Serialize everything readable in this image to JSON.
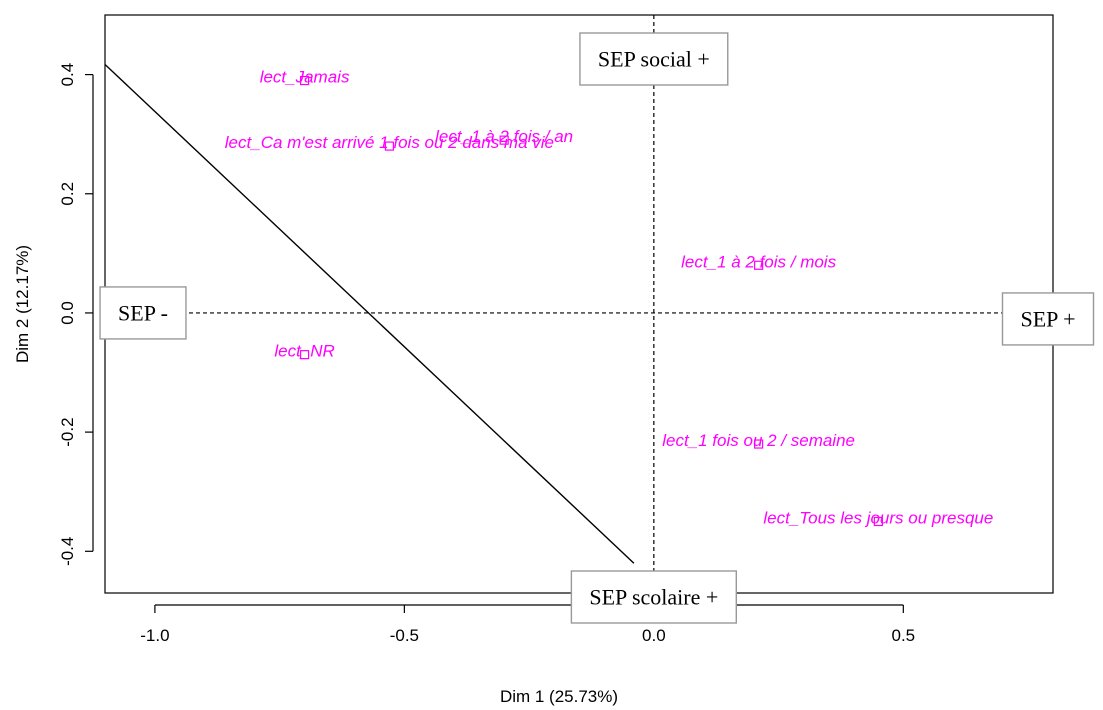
{
  "chart_data": {
    "type": "scatter",
    "xlabel": "Dim 1 (25.73%)",
    "ylabel": "Dim 2 (12.17%)",
    "xlim": [
      -1.1,
      0.8
    ],
    "ylim": [
      -0.47,
      0.5
    ],
    "x_ticks": [
      -1.0,
      -0.5,
      0.0,
      0.5
    ],
    "x_tick_labels": [
      "-1.0",
      "-0.5",
      "0.0",
      "0.5"
    ],
    "y_ticks": [
      -0.4,
      -0.2,
      0.0,
      0.2,
      0.4
    ],
    "y_tick_labels": [
      "-0.4",
      "-0.2",
      "0.0",
      "0.2",
      "0.4"
    ],
    "point_color": "#ff00ff",
    "points": [
      {
        "label": "lect_Jamais",
        "x": -0.7,
        "y": 0.39
      },
      {
        "label": "lect_1 à 2 fois / an",
        "x": -0.3,
        "y": 0.29
      },
      {
        "label": "lect_Ca m'est arrivé 1 fois ou 2 dans ma vie",
        "x": -0.53,
        "y": 0.28
      },
      {
        "label": "lect_1 à 2 fois / mois",
        "x": 0.21,
        "y": 0.08
      },
      {
        "label": "lect_NR",
        "x": -0.7,
        "y": -0.07
      },
      {
        "label": "lect_1 fois ou 2 / semaine",
        "x": 0.21,
        "y": -0.22
      },
      {
        "label": "lect_Tous les jours ou presque",
        "x": 0.45,
        "y": -0.35
      }
    ],
    "reference_lines": [
      {
        "orientation": "horizontal",
        "value": 0.0,
        "style": "dashed"
      },
      {
        "orientation": "vertical",
        "value": 0.0,
        "style": "dashed"
      }
    ],
    "diagonal_line": {
      "from": [
        -1.1,
        0.417
      ],
      "to": [
        -0.04,
        -0.42
      ]
    },
    "annotations": [
      {
        "text": "SEP social +",
        "anchor": "top-center"
      },
      {
        "text": "SEP scolaire +",
        "anchor": "bottom-center"
      },
      {
        "text": "SEP -",
        "anchor": "left-middle"
      },
      {
        "text": "SEP +",
        "anchor": "right-middle"
      }
    ]
  }
}
